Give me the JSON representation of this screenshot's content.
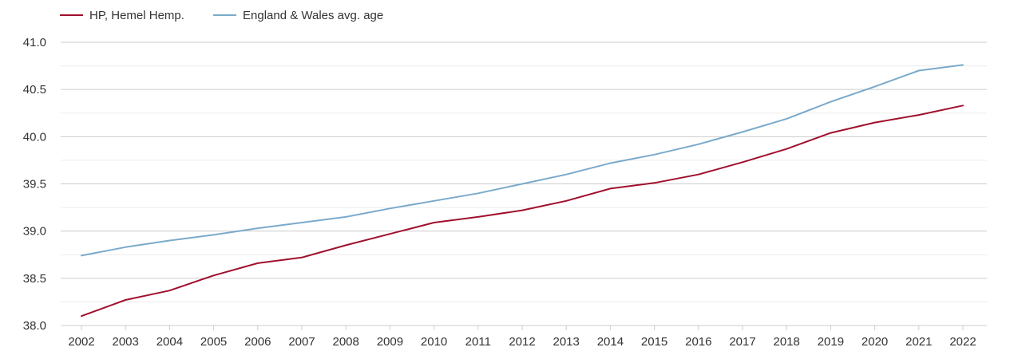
{
  "chart_data": {
    "type": "line",
    "title": "",
    "xlabel": "",
    "ylabel": "",
    "ylim": [
      38.0,
      41.0
    ],
    "y_ticks": [
      "38.0",
      "38.5",
      "39.0",
      "39.5",
      "40.0",
      "40.5",
      "41.0"
    ],
    "grid": true,
    "legend_position": "top-left",
    "x": [
      "2002",
      "2003",
      "2004",
      "2005",
      "2006",
      "2007",
      "2008",
      "2009",
      "2010",
      "2011",
      "2012",
      "2013",
      "2014",
      "2015",
      "2016",
      "2017",
      "2018",
      "2019",
      "2020",
      "2021",
      "2022"
    ],
    "series": [
      {
        "name": "HP, Hemel Hemp.",
        "color": "#a0102e",
        "values": [
          38.1,
          38.27,
          38.37,
          38.53,
          38.66,
          38.72,
          38.85,
          38.97,
          39.09,
          39.15,
          39.22,
          39.32,
          39.45,
          39.51,
          39.6,
          39.73,
          39.87,
          40.04,
          40.15,
          40.23,
          40.33
        ]
      },
      {
        "name": "England & Wales avg. age",
        "color": "#7aaacb",
        "values": [
          38.74,
          38.83,
          38.9,
          38.96,
          39.03,
          39.09,
          39.15,
          39.24,
          39.32,
          39.4,
          39.5,
          39.6,
          39.72,
          39.81,
          39.92,
          40.05,
          40.19,
          40.37,
          40.53,
          40.7,
          40.76
        ]
      }
    ]
  }
}
